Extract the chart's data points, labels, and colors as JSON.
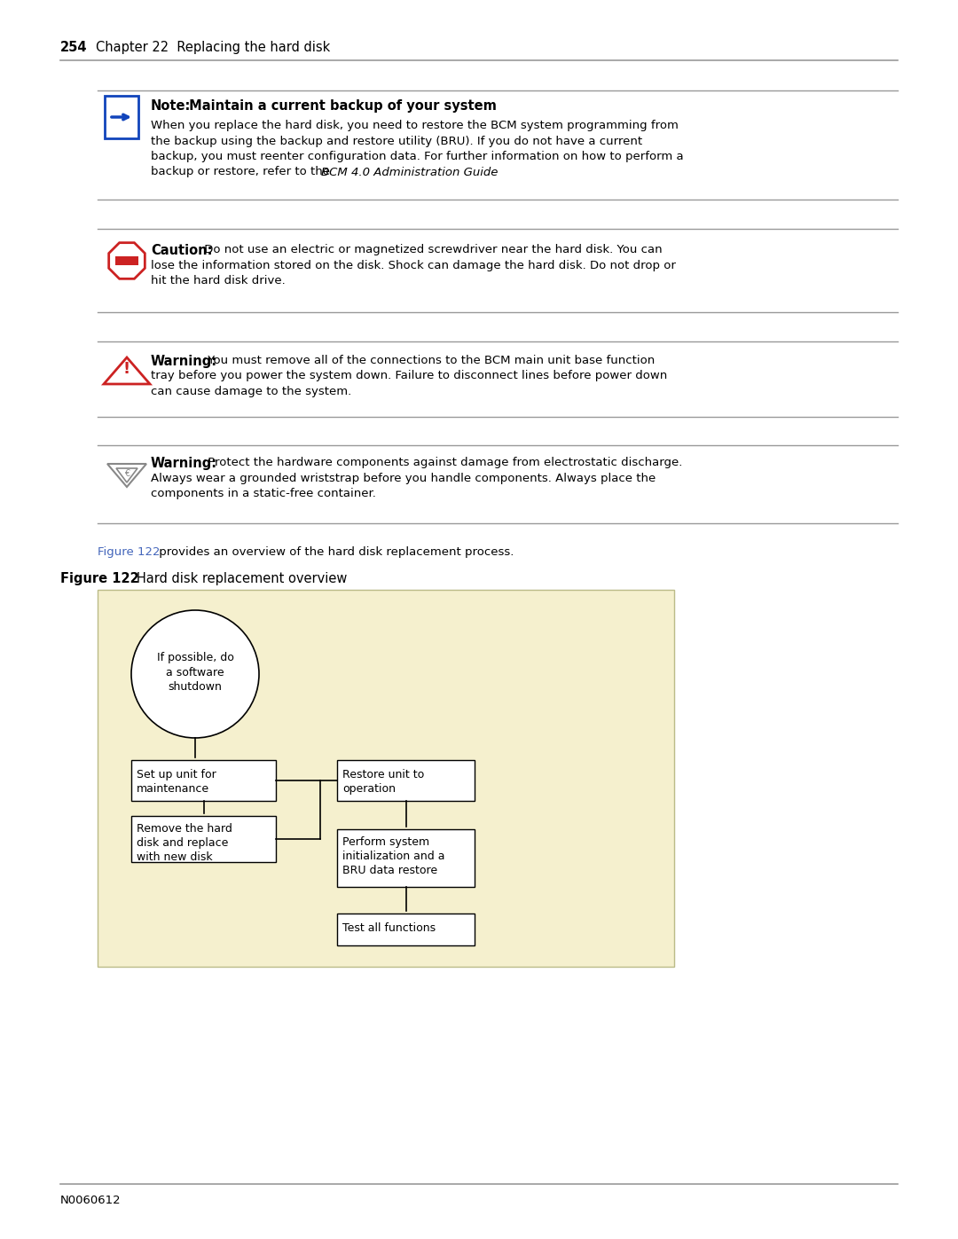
{
  "page_number": "254",
  "chapter_title": "Chapter 22  Replacing the hard disk",
  "note_title_bold": "Note:",
  "note_title_rest": " Maintain a current backup of your system",
  "note_line1": "When you replace the hard disk, you need to restore the BCM system programming from",
  "note_line2": "the backup using the backup and restore utility (BRU). If you do not have a current",
  "note_line3": "backup, you must reenter configuration data. For further information on how to perform a",
  "note_line4a": "backup or restore, refer to the ",
  "note_line4b": "BCM 4.0 Administration Guide",
  "note_line4c": ".",
  "caution_title": "Caution:",
  "caution_line1": " Do not use an electric or magnetized screwdriver near the hard disk. You can",
  "caution_line2": "lose the information stored on the disk. Shock can damage the hard disk. Do not drop or",
  "caution_line3": "hit the hard disk drive.",
  "warn1_title": "Warning:",
  "warn1_line1": " You must remove all of the connections to the BCM main unit base function",
  "warn1_line2": "tray before you power the system down. Failure to disconnect lines before power down",
  "warn1_line3": "can cause damage to the system.",
  "warn2_title": "Warning:",
  "warn2_line1": " Protect the hardware components against damage from electrostatic discharge.",
  "warn2_line2": "Always wear a grounded wriststrap before you handle components. Always place the",
  "warn2_line3": "components in a static-free container.",
  "fig_ref_link": "Figure 122",
  "fig_ref_rest": " provides an overview of the hard disk replacement process.",
  "fig_caption_bold": "Figure 122",
  "fig_caption_rest": "   Hard disk replacement overview",
  "flowchart_bg": "#f5f0ce",
  "footer": "N0060612",
  "link_color": "#4466bb",
  "line_color": "#999999",
  "icon_blue": "#1144bb",
  "icon_red": "#cc2222",
  "icon_orange": "#cc4400",
  "icon_gray": "#888888"
}
